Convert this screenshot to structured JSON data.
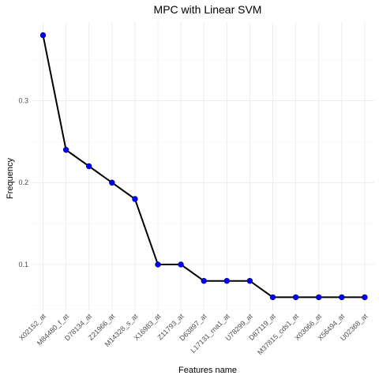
{
  "chart_data": {
    "type": "line",
    "title": "MPC with Linear SVM",
    "xlabel": "Features name",
    "ylabel": "Frequency",
    "categories": [
      "X02152_at",
      "M84480_f_at",
      "D78134_at",
      "Z21966_at",
      "M14328_s_at",
      "X16983_at",
      "Z11793_at",
      "D63897_at",
      "L17131_rna1_at",
      "U78299_at",
      "D87119_at",
      "M37815_cds1_at",
      "X03066_at",
      "X56494_at",
      "U02368_at"
    ],
    "series": [
      {
        "values": [
          0.38,
          0.24,
          0.22,
          0.2,
          0.18,
          0.1,
          0.1,
          0.08,
          0.08,
          0.08,
          0.06,
          0.06,
          0.06,
          0.06,
          0.06
        ]
      }
    ],
    "ylim": [
      0.044,
      0.396
    ],
    "yticks": [
      0.1,
      0.2,
      0.3
    ],
    "ytick_labels": [
      "0.1",
      "0.2",
      "0.3"
    ],
    "grid": true,
    "legend": "none",
    "colors": {
      "line": "#000000",
      "point": "#0000ff",
      "grid": "#ebebeb",
      "background": "#ffffff"
    }
  }
}
